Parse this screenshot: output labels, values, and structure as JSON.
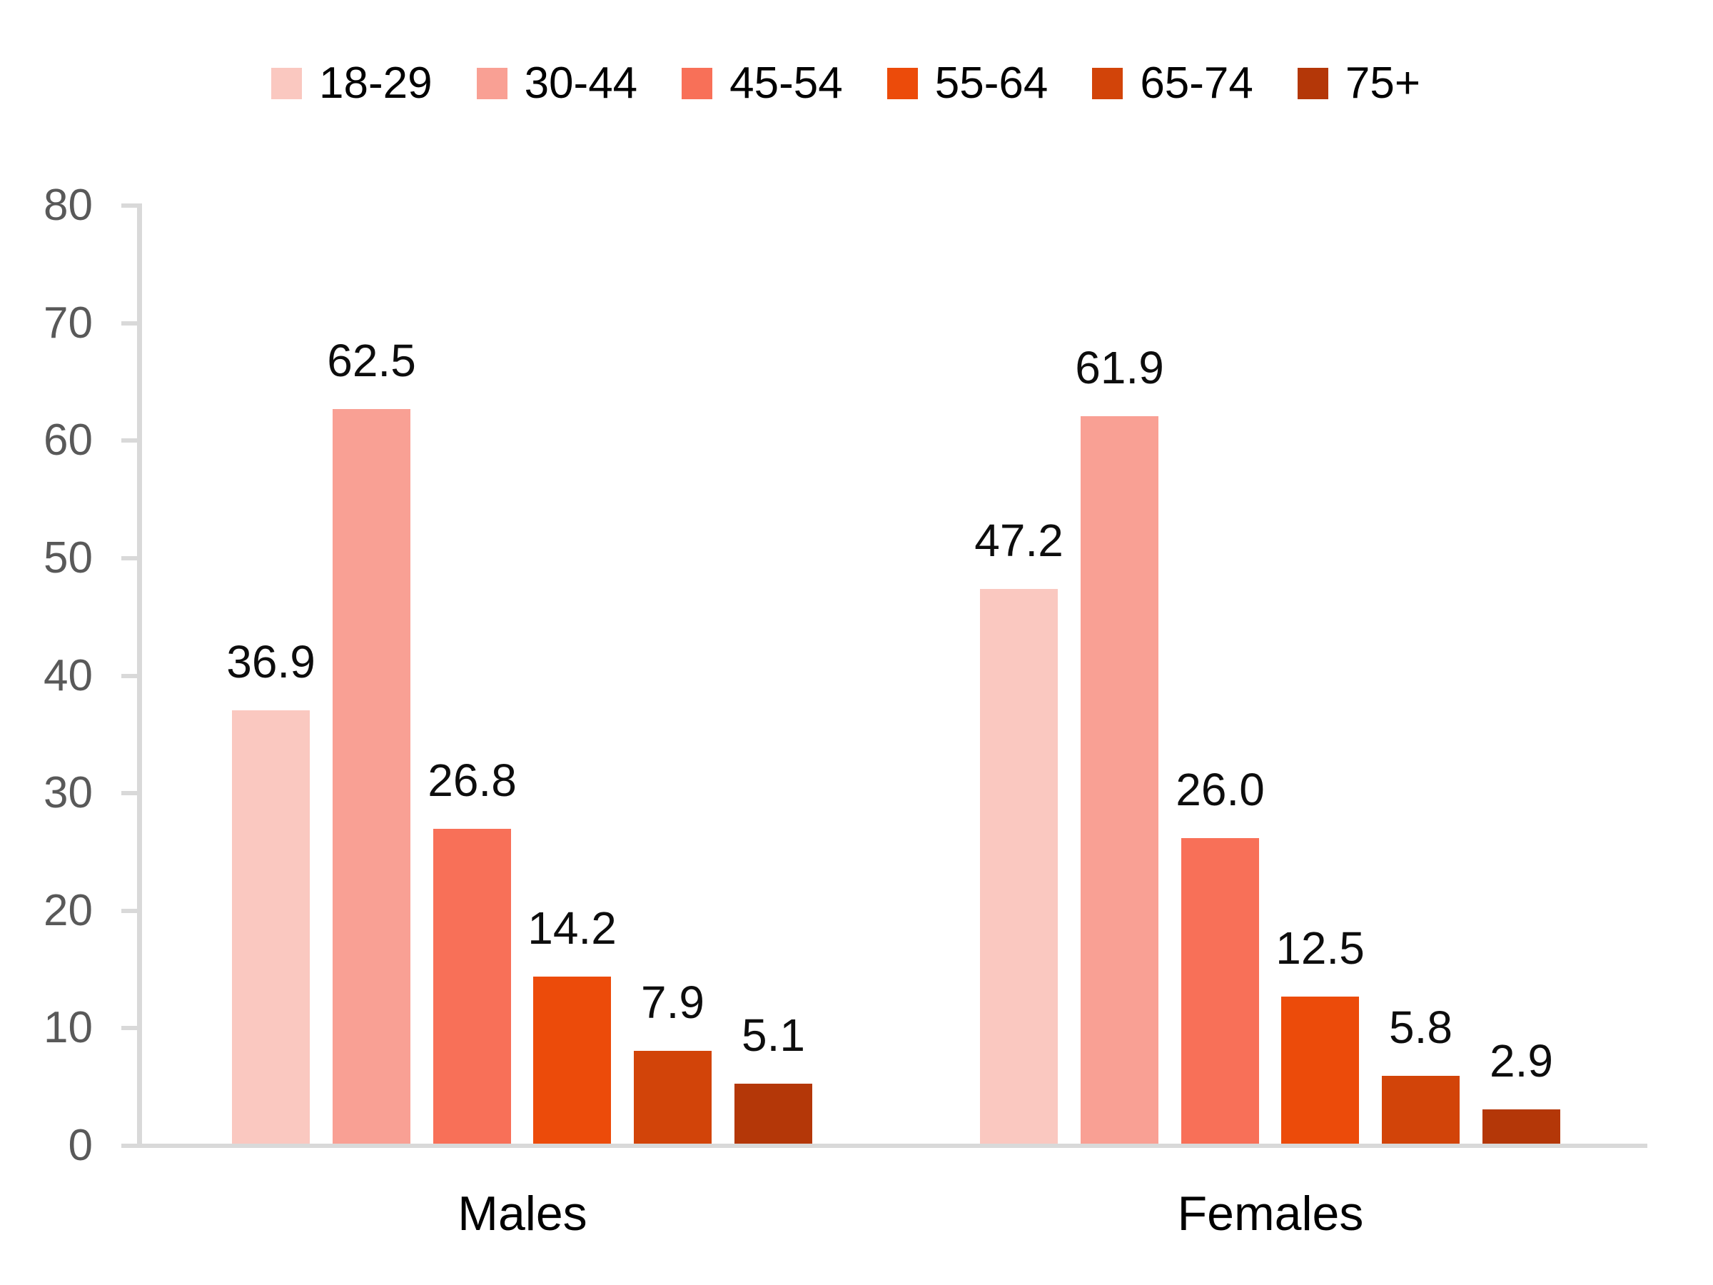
{
  "chart_data": {
    "type": "bar",
    "title": "",
    "categories": [
      "Males",
      "Females"
    ],
    "series": [
      {
        "name": "18-29",
        "color": "#FAC8C0",
        "values": [
          36.9,
          47.2
        ],
        "labels": [
          "36.9",
          "47.2"
        ]
      },
      {
        "name": "30-44",
        "color": "#F9A094",
        "values": [
          62.5,
          61.9
        ],
        "labels": [
          "62.5",
          "61.9"
        ]
      },
      {
        "name": "45-54",
        "color": "#F87058",
        "values": [
          26.8,
          26.0
        ],
        "labels": [
          "26.8",
          "26.0"
        ]
      },
      {
        "name": "55-64",
        "color": "#EC4B0A",
        "values": [
          14.2,
          12.5
        ],
        "labels": [
          "14.2",
          "12.5"
        ]
      },
      {
        "name": "65-74",
        "color": "#D24409",
        "values": [
          7.9,
          5.8
        ],
        "labels": [
          "7.9",
          "5.8"
        ]
      },
      {
        "name": "75+",
        "color": "#B43708",
        "values": [
          5.1,
          2.9
        ],
        "labels": [
          "5.1",
          "2.9"
        ]
      }
    ],
    "y_axis": {
      "min": 0,
      "max": 80,
      "step": 10,
      "ticks": [
        0,
        10,
        20,
        30,
        40,
        50,
        60,
        70,
        80
      ],
      "tick_labels": [
        "0",
        "10",
        "20",
        "30",
        "40",
        "50",
        "60",
        "70",
        "80"
      ]
    },
    "xlabel": "",
    "ylabel": "",
    "legend_position": "top",
    "grid": false,
    "colors": {
      "axis_line": "#D9D9D9",
      "tick_label": "#595959",
      "data_label": "#0D0D0D",
      "category_label": "#000000",
      "background": "#FFFFFF"
    }
  }
}
